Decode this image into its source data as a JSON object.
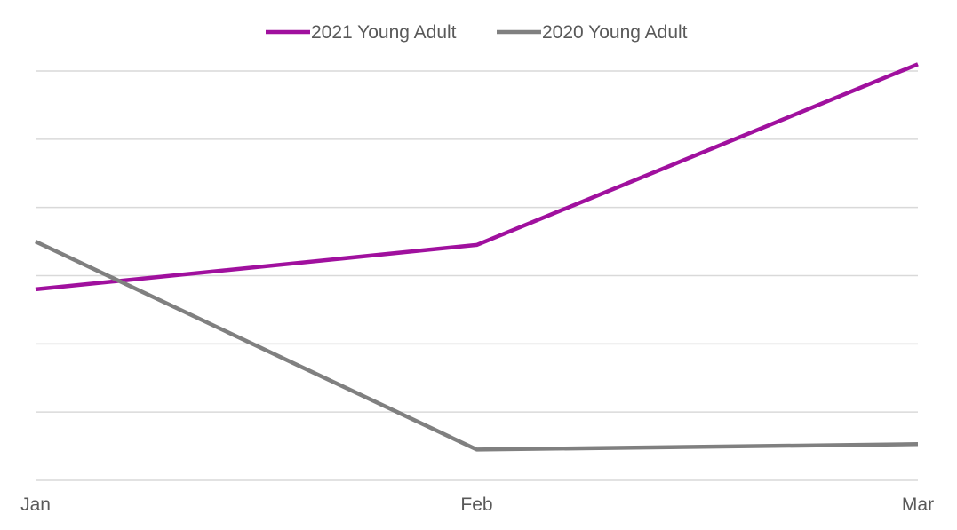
{
  "chart_data": {
    "type": "line",
    "categories": [
      "Jan",
      "Feb",
      "Mar"
    ],
    "series": [
      {
        "name": "2021 Young Adult",
        "color": "#a0109e",
        "values": [
          2.8,
          3.45,
          6.1
        ]
      },
      {
        "name": "2020 Young Adult",
        "color": "#808080",
        "values": [
          3.5,
          0.45,
          0.53
        ]
      }
    ],
    "ylim": [
      0,
      6
    ],
    "grid": true,
    "legend_position": "top-center",
    "title": "",
    "xlabel": "",
    "ylabel": ""
  }
}
